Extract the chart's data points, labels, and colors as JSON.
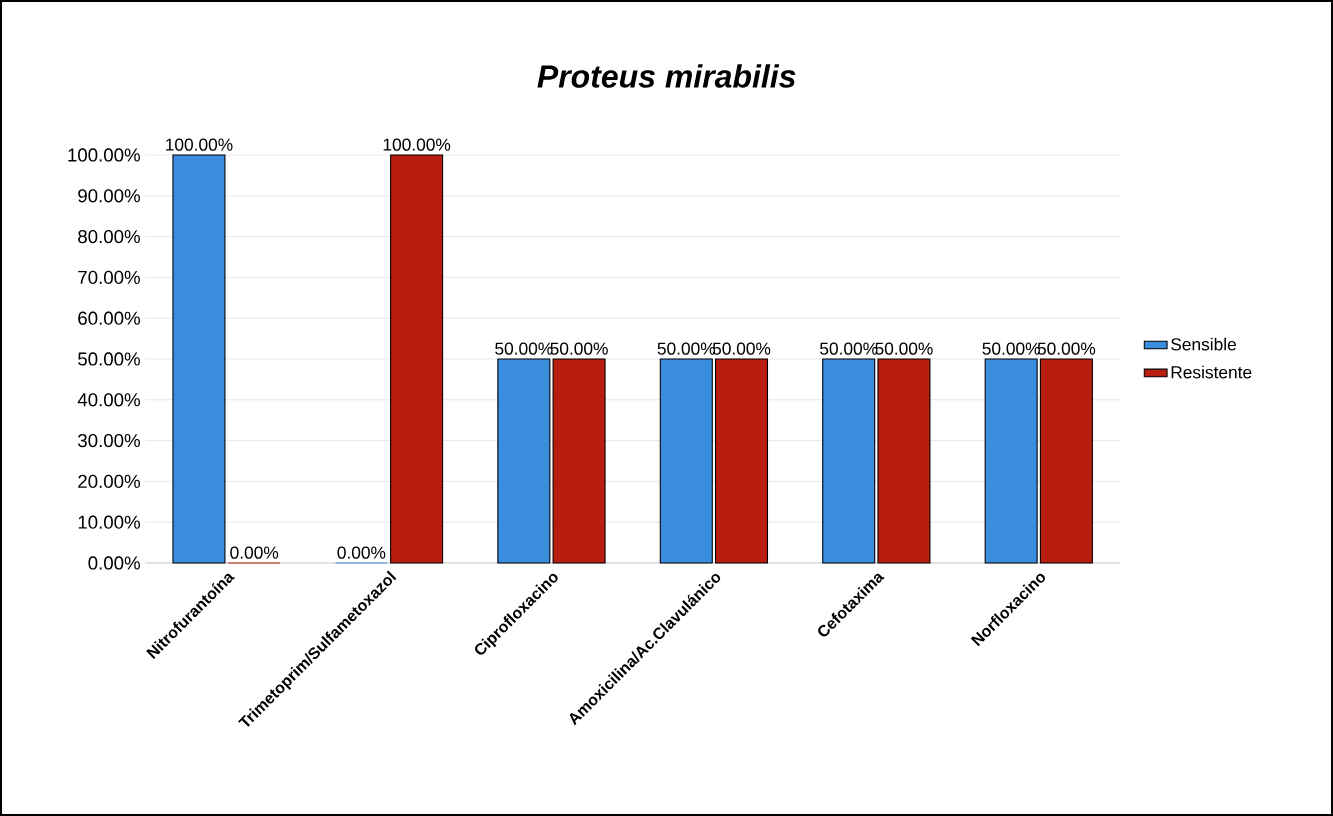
{
  "chart_data": {
    "type": "bar",
    "title": "*Proteus mirabilis*",
    "categories": [
      "Nitrofurantoína",
      "Trimetoprim/Sulfametoxazol",
      "Ciprofloxacino",
      "Amoxicilina/Ac.Clavulánico",
      "Cefotaxima",
      "Norfloxacino"
    ],
    "series": [
      {
        "name": "Sensible",
        "color": "#3b8ede",
        "values": [
          100,
          0,
          50,
          50,
          50,
          50
        ],
        "value_labels": [
          "100.00%",
          "0.00%",
          "50.00%",
          "50.00%",
          "50.00%",
          "50.00%"
        ]
      },
      {
        "name": "Resistente",
        "color": "#b81e10",
        "values": [
          0,
          100,
          50,
          50,
          50,
          50
        ],
        "value_labels": [
          "0.00%",
          "100.00%",
          "50.00%",
          "50.00%",
          "50.00%",
          "50.00%"
        ]
      }
    ],
    "ylim": [
      0,
      100
    ],
    "yticks": [
      {
        "value": 0,
        "label": "0.00%"
      },
      {
        "value": 10,
        "label": "10.00%"
      },
      {
        "value": 20,
        "label": "20.00%"
      },
      {
        "value": 30,
        "label": "30.00%"
      },
      {
        "value": 40,
        "label": "40.00%"
      },
      {
        "value": 50,
        "label": "50.00%"
      },
      {
        "value": 60,
        "label": "60.00%"
      },
      {
        "value": 70,
        "label": "70.00%"
      },
      {
        "value": 80,
        "label": "80.00%"
      },
      {
        "value": 90,
        "label": "90.00%"
      },
      {
        "value": 100,
        "label": "100.00%"
      }
    ],
    "grid": "y",
    "legend": "right"
  }
}
